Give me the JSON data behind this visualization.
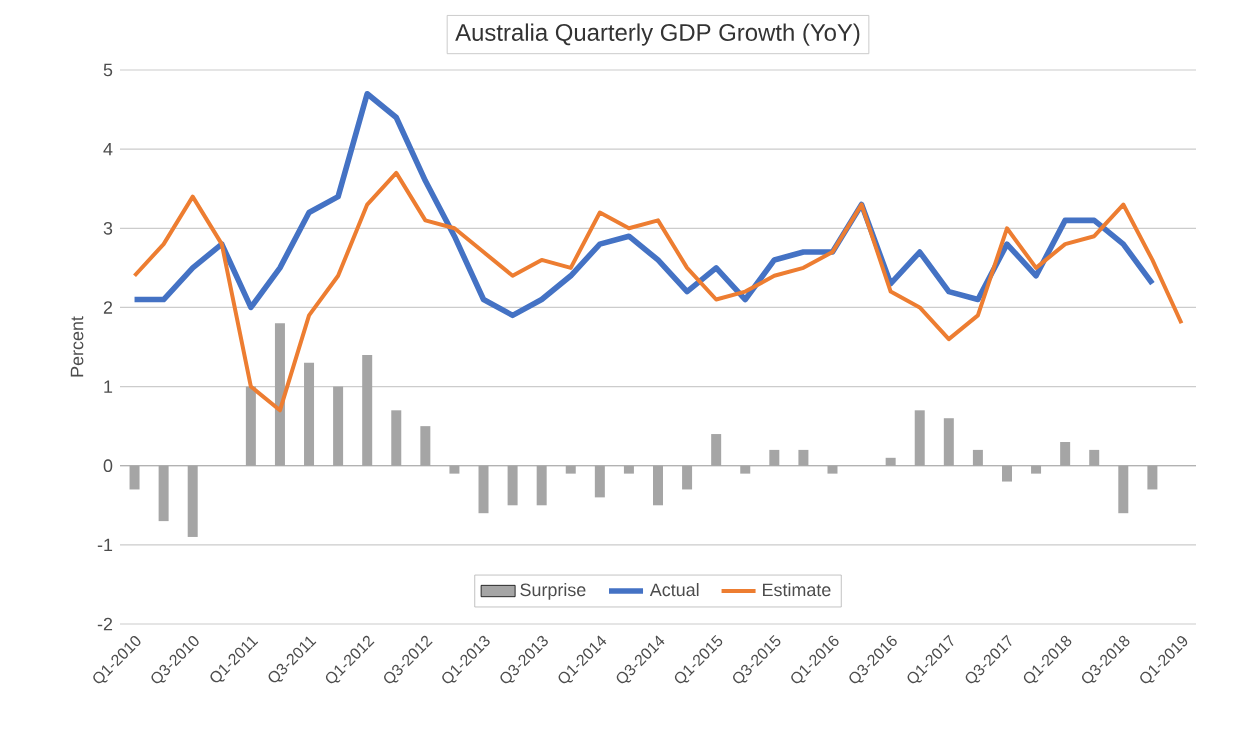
{
  "chart_data": {
    "type": "line",
    "title": "Australia Quarterly GDP Growth (YoY)",
    "ylabel": "Percent",
    "categories": [
      "Q1-2010",
      null,
      "Q3-2010",
      null,
      "Q1-2011",
      null,
      "Q3-2011",
      null,
      "Q1-2012",
      null,
      "Q3-2012",
      null,
      "Q1-2013",
      null,
      "Q3-2013",
      null,
      "Q1-2014",
      null,
      "Q3-2014",
      null,
      "Q1-2015",
      null,
      "Q3-2015",
      null,
      "Q1-2016",
      null,
      "Q3-2016",
      null,
      "Q1-2017",
      null,
      "Q3-2017",
      null,
      "Q1-2018",
      null,
      "Q3-2018",
      null,
      "Q1-2019"
    ],
    "series": [
      {
        "name": "Surprise",
        "type": "bar",
        "color": "#a5a5a5",
        "values": [
          -0.3,
          -0.7,
          -0.9,
          0,
          1.0,
          1.8,
          1.3,
          1.0,
          1.4,
          0.7,
          0.5,
          -0.1,
          -0.6,
          -0.5,
          -0.5,
          -0.1,
          -0.4,
          -0.1,
          -0.5,
          -0.3,
          0.4,
          -0.1,
          0.2,
          0.2,
          -0.1,
          0,
          0.1,
          0.7,
          0.6,
          0.2,
          -0.2,
          -0.1,
          0.3,
          0.2,
          -0.6,
          -0.3,
          null
        ]
      },
      {
        "name": "Actual",
        "color": "#4472c4",
        "values": [
          2.1,
          2.1,
          2.5,
          2.8,
          2.0,
          2.5,
          3.2,
          3.4,
          4.7,
          4.4,
          3.6,
          2.9,
          2.1,
          1.9,
          2.1,
          2.4,
          2.8,
          2.9,
          2.6,
          2.2,
          2.5,
          2.1,
          2.6,
          2.7,
          2.7,
          3.3,
          2.3,
          2.7,
          2.2,
          2.1,
          2.8,
          2.4,
          3.1,
          3.1,
          2.8,
          2.3,
          null
        ]
      },
      {
        "name": "Estimate",
        "color": "#ed7d31",
        "values": [
          2.4,
          2.8,
          3.4,
          2.8,
          1.0,
          0.7,
          1.9,
          2.4,
          3.3,
          3.7,
          3.1,
          3.0,
          2.7,
          2.4,
          2.6,
          2.5,
          3.2,
          3.0,
          3.1,
          2.5,
          2.1,
          2.2,
          2.4,
          2.5,
          2.7,
          3.3,
          2.2,
          2.0,
          1.6,
          1.9,
          3.0,
          2.5,
          2.8,
          2.9,
          3.3,
          2.6,
          1.8
        ]
      }
    ],
    "ylim": [
      -2,
      5
    ],
    "yticks": [
      -2,
      -1,
      0,
      1,
      2,
      3,
      4,
      5
    ],
    "grid": "y",
    "legend": "bottom"
  }
}
